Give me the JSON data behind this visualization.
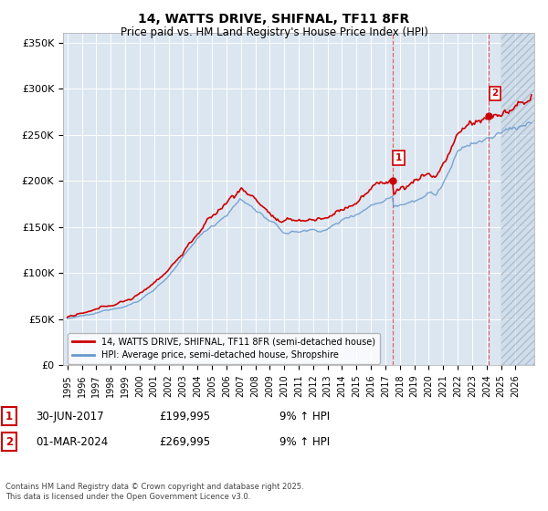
{
  "title": "14, WATTS DRIVE, SHIFNAL, TF11 8FR",
  "subtitle": "Price paid vs. HM Land Registry's House Price Index (HPI)",
  "legend_line1": "14, WATTS DRIVE, SHIFNAL, TF11 8FR (semi-detached house)",
  "legend_line2": "HPI: Average price, semi-detached house, Shropshire",
  "footnote": "Contains HM Land Registry data © Crown copyright and database right 2025.\nThis data is licensed under the Open Government Licence v3.0.",
  "marker1_date": "30-JUN-2017",
  "marker1_price": "£199,995",
  "marker1_hpi": "9% ↑ HPI",
  "marker2_date": "01-MAR-2024",
  "marker2_price": "£269,995",
  "marker2_hpi": "9% ↑ HPI",
  "bg_color": "#dce6f1",
  "line1_color": "#cc0000",
  "line2_color": "#6699cc",
  "ylim": [
    0,
    360000
  ],
  "yticks": [
    0,
    50000,
    100000,
    150000,
    200000,
    250000,
    300000,
    350000
  ],
  "ytick_labels": [
    "£0",
    "£50K",
    "£100K",
    "£150K",
    "£200K",
    "£250K",
    "£300K",
    "£350K"
  ],
  "marker1_x": 2017.5,
  "marker2_x": 2024.17,
  "marker1_y": 199995,
  "marker2_y": 269995,
  "xmin": 1994.7,
  "xmax": 2027.3,
  "hatch_start": 2025.0
}
